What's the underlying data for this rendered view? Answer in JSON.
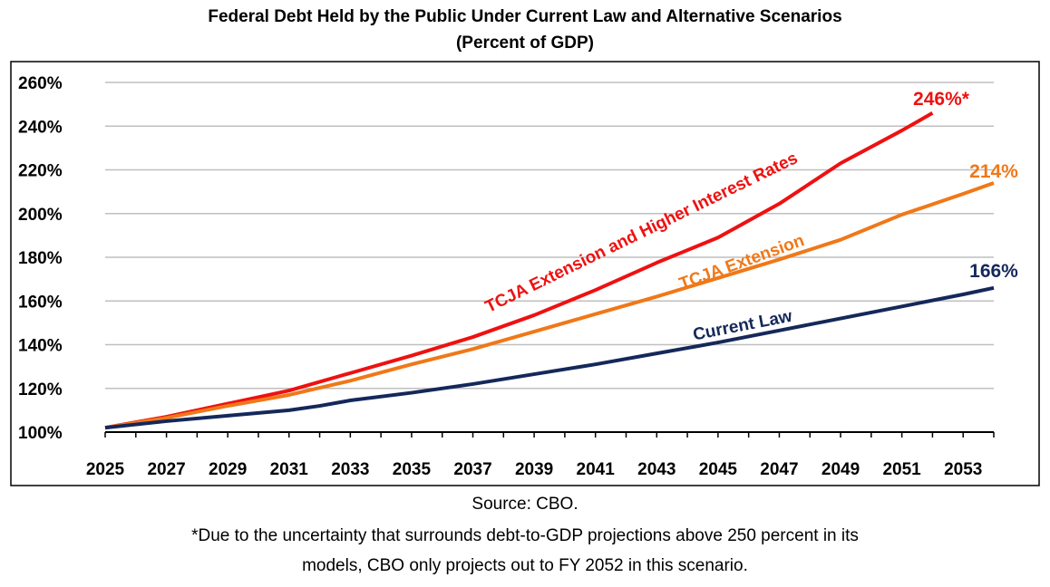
{
  "chart_data": {
    "type": "line",
    "title": "Federal Debt Held by the Public Under Current Law and Alternative Scenarios",
    "subtitle": "(Percent of GDP)",
    "xlabel": "",
    "ylabel": "",
    "xlim": [
      2025,
      2054
    ],
    "ylim": [
      100,
      260
    ],
    "x_ticks": [
      "2025",
      "2027",
      "2029",
      "2031",
      "2033",
      "2035",
      "2037",
      "2039",
      "2041",
      "2043",
      "2045",
      "2047",
      "2049",
      "2051",
      "2053"
    ],
    "y_ticks": [
      "100%",
      "120%",
      "140%",
      "160%",
      "180%",
      "200%",
      "220%",
      "240%",
      "260%"
    ],
    "grid": true,
    "series": [
      {
        "name": "TCJA Extension and Higher Interest Rates",
        "color": "#ee1111",
        "end_label": "246%*",
        "x": [
          2025,
          2027,
          2029,
          2031,
          2033,
          2035,
          2037,
          2039,
          2041,
          2043,
          2045,
          2047,
          2049,
          2051,
          2052
        ],
        "y": [
          102,
          107,
          113,
          119,
          127,
          135,
          143.5,
          153.5,
          165,
          177.5,
          189,
          204.5,
          223,
          238,
          246
        ]
      },
      {
        "name": "TCJA Extension",
        "color": "#f07818",
        "end_label": "214%",
        "x": [
          2025,
          2027,
          2029,
          2031,
          2033,
          2035,
          2037,
          2039,
          2041,
          2043,
          2045,
          2047,
          2049,
          2051,
          2053,
          2054
        ],
        "y": [
          102,
          106.5,
          112,
          117,
          123.5,
          131,
          138,
          146,
          154,
          162,
          170.5,
          179,
          188,
          199.5,
          209,
          214
        ]
      },
      {
        "name": "Current Law",
        "color": "#14285a",
        "end_label": "166%",
        "x": [
          2025,
          2027,
          2029,
          2031,
          2032,
          2033,
          2035,
          2037,
          2039,
          2041,
          2043,
          2045,
          2047,
          2049,
          2051,
          2053,
          2054
        ],
        "y": [
          102,
          105,
          107.5,
          110,
          112,
          114.5,
          118,
          122,
          126.5,
          131,
          136,
          141,
          146.5,
          152,
          157.5,
          163,
          166
        ]
      }
    ]
  },
  "source": "Source: CBO.",
  "footnote_line1": "*Due to the uncertainty that surrounds debt-to-GDP projections above 250 percent in its",
  "footnote_line2": "models, CBO only projects out to FY 2052 in this scenario."
}
